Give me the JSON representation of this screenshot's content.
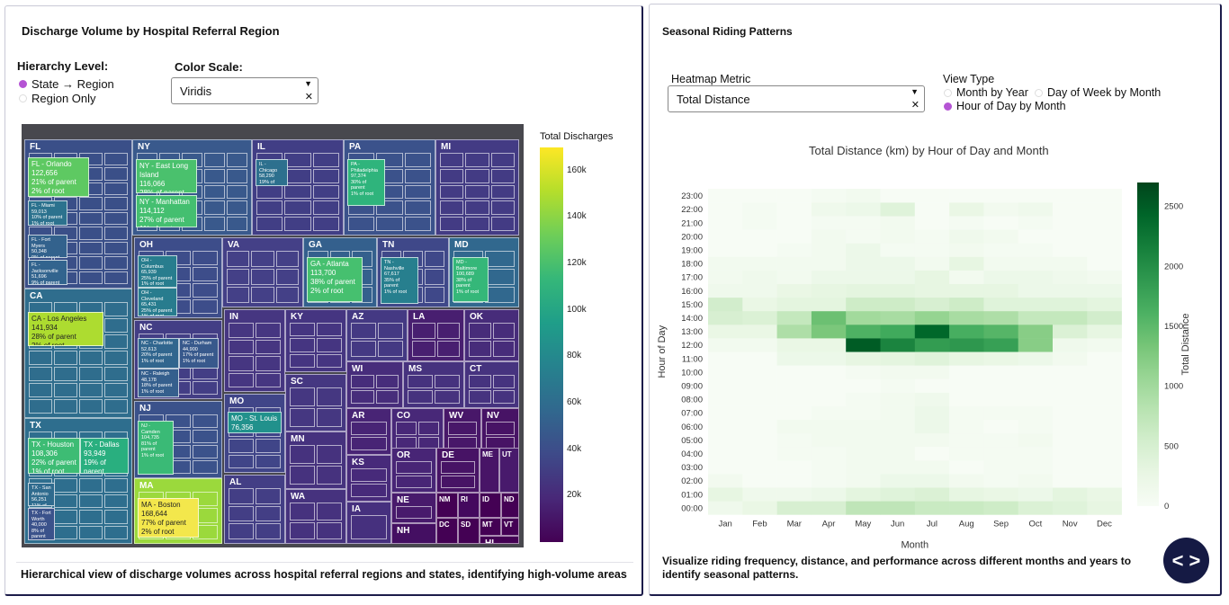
{
  "left": {
    "title": "Discharge Volume by Hospital Referral Region",
    "hierarchy_label": "Hierarchy Level:",
    "hierarchy_options": [
      {
        "label": "State → Region",
        "selected": true
      },
      {
        "label": "Region Only",
        "selected": false
      }
    ],
    "color_scale_label": "Color Scale:",
    "color_scale_value": "Viridis",
    "colorbar_title": "Total Discharges",
    "colorbar_ticks": [
      "160k",
      "140k",
      "120k",
      "100k",
      "80k",
      "60k",
      "40k",
      "20k"
    ],
    "states": [
      {
        "code": "FL",
        "color": "#3a4f88"
      },
      {
        "code": "NY",
        "color": "#39598c"
      },
      {
        "code": "IL",
        "color": "#413e85"
      },
      {
        "code": "PA",
        "color": "#3b528b"
      },
      {
        "code": "MI",
        "color": "#433b84"
      },
      {
        "code": "CA",
        "color": "#2f6d8d"
      },
      {
        "code": "OH",
        "color": "#3d4d8a"
      },
      {
        "code": "VA",
        "color": "#444087"
      },
      {
        "code": "GA",
        "color": "#34608d"
      },
      {
        "code": "TN",
        "color": "#3f4889"
      },
      {
        "code": "MD",
        "color": "#31688e"
      },
      {
        "code": "NC",
        "color": "#433e85"
      },
      {
        "code": "IN",
        "color": "#463681"
      },
      {
        "code": "KY",
        "color": "#453581"
      },
      {
        "code": "AZ",
        "color": "#443983"
      },
      {
        "code": "LA",
        "color": "#481f70"
      },
      {
        "code": "OK",
        "color": "#472c7a"
      },
      {
        "code": "WI",
        "color": "#472d7b"
      },
      {
        "code": "MS",
        "color": "#46327e"
      },
      {
        "code": "CT",
        "color": "#46337f"
      },
      {
        "code": "TX",
        "color": "#2e6e8e"
      },
      {
        "code": "MO",
        "color": "#404588"
      },
      {
        "code": "SC",
        "color": "#453781"
      },
      {
        "code": "NJ",
        "color": "#3b528b"
      },
      {
        "code": "MN",
        "color": "#46327e"
      },
      {
        "code": "AR",
        "color": "#482475"
      },
      {
        "code": "CO",
        "color": "#482878"
      },
      {
        "code": "WV",
        "color": "#481769"
      },
      {
        "code": "NV",
        "color": "#471365"
      },
      {
        "code": "KS",
        "color": "#472a7a"
      },
      {
        "code": "OR",
        "color": "#482576"
      },
      {
        "code": "DE",
        "color": "#471365"
      },
      {
        "code": "ME",
        "color": "#481467"
      },
      {
        "code": "UT",
        "color": "#481a6c"
      },
      {
        "code": "MA",
        "color": "#9bd93c"
      },
      {
        "code": "AL",
        "color": "#433e85"
      },
      {
        "code": "WA",
        "color": "#46327e"
      },
      {
        "code": "NE",
        "color": "#481a6c"
      },
      {
        "code": "IA",
        "color": "#46307e"
      },
      {
        "code": "NM",
        "color": "#440154"
      },
      {
        "code": "RI",
        "color": "#44095e"
      },
      {
        "code": "ID",
        "color": "#440154"
      },
      {
        "code": "ND",
        "color": "#440154"
      },
      {
        "code": "NH",
        "color": "#440f62"
      },
      {
        "code": "DC",
        "color": "#440154"
      },
      {
        "code": "SD",
        "color": "#440154"
      },
      {
        "code": "MT",
        "color": "#440154"
      },
      {
        "code": "VT",
        "color": "#440154"
      },
      {
        "code": "HI",
        "color": "#440154"
      }
    ],
    "region_labels": [
      {
        "name": "FL - Orlando",
        "value": "122,656",
        "p1": "21% of parent",
        "p2": "2% of root",
        "color": "#5ec962"
      },
      {
        "name": "CA - Los Angeles",
        "value": "141,934",
        "p1": "28% of parent",
        "p2": "2% of root",
        "color": "#addc30"
      },
      {
        "name": "MA - Boston",
        "value": "168,644",
        "p1": "77% of parent",
        "p2": "2% of root",
        "color": "#f3e74c"
      },
      {
        "name": "TX - Houston",
        "value": "108,306",
        "p1": "22% of parent",
        "p2": "1% of root",
        "color": "#3dbc74"
      },
      {
        "name": "TX - Dallas",
        "value": "93,949",
        "p1": "19% of parent",
        "p2": "1% of root",
        "color": "#29af7f"
      },
      {
        "name": "NY - East Long Island",
        "value": "116,066",
        "p1": "28% of parent",
        "p2": "2% of root",
        "color": "#4ac16d"
      },
      {
        "name": "NY - Manhattan",
        "value": "114,112",
        "p1": "27% of parent",
        "p2": "1% of root",
        "color": "#44bf70"
      },
      {
        "name": "GA - Atlanta",
        "value": "113,700",
        "p1": "38% of parent",
        "p2": "2% of root",
        "color": "#46c06f"
      },
      {
        "name": "MD - Baltimore",
        "value": "100,689",
        "p1": "38% of parent",
        "p2": "1% of root",
        "color": "#35b779"
      },
      {
        "name": "FL - Miami",
        "value": "59,013",
        "p1": "10% of parent",
        "p2": "1% of root",
        "color": "#2c728e"
      },
      {
        "name": "FL - Fort Myers",
        "value": "50,348",
        "p1": "9% of parent",
        "p2": "1% of root",
        "color": "#33628d"
      },
      {
        "name": "FL - Jacksonville",
        "value": "51,696",
        "p1": "9% of parent",
        "p2": "1% of root",
        "color": "#32648e"
      },
      {
        "name": "OH - Columbus",
        "value": "65,939",
        "p1": "25% of parent",
        "p2": "1% of root",
        "color": "#287d8e"
      },
      {
        "name": "OH - Cleveland",
        "value": "65,431",
        "p1": "25% of parent",
        "p2": "1% of root",
        "color": "#287c8e"
      },
      {
        "name": "PA - Philadelphia",
        "value": "97,374",
        "p1": "30% of parent",
        "p2": "1% of root",
        "color": "#2fb47c"
      },
      {
        "name": "TN - Nashville",
        "value": "67,617",
        "p1": "35% of parent",
        "p2": "1% of root",
        "color": "#277f8e"
      },
      {
        "name": "NC - Charlotte",
        "value": "52,613",
        "p1": "20% of parent",
        "p2": "1% of root",
        "color": "#31668e"
      },
      {
        "name": "NC - Raleigh",
        "value": "48,178",
        "p1": "18% of parent",
        "p2": "1% of root",
        "color": "#355f8d"
      },
      {
        "name": "NC - Durham",
        "value": "44,900",
        "p1": "17% of parent",
        "p2": "1% of root",
        "color": "#38598c"
      },
      {
        "name": "NJ - Camden",
        "value": "104,735",
        "p1": "81% of parent",
        "p2": "1% of root",
        "color": "#3aba76"
      },
      {
        "name": "MO - St. Louis",
        "value": "76,356",
        "p1": "46% of parent",
        "p2": "1% of root",
        "color": "#21918c"
      },
      {
        "name": "IL - Chicago",
        "value": "58,290",
        "p1": "19% of parent",
        "p2": "1% of root",
        "color": "#2d708e"
      },
      {
        "name": "TX - San Antonio",
        "value": "56,251",
        "p1": "11% of parent",
        "p2": "1% of root",
        "color": "#2f6b8e"
      },
      {
        "name": "TX - Fort Worth",
        "value": "40,000",
        "p1": "8% of parent",
        "p2": "1% of root",
        "color": "#3b528b"
      }
    ]
  },
  "right": {
    "title": "Seasonal Riding Patterns",
    "metric_label": "Heatmap Metric",
    "metric_value": "Total Distance",
    "view_label": "View Type",
    "view_options": [
      {
        "label": "Month by Year",
        "selected": false
      },
      {
        "label": "Day of Week by Month",
        "selected": false
      },
      {
        "label": "Hour of Day by Month",
        "selected": true
      }
    ],
    "footer": "Visualize riding frequency, distance, and performance across different months and years to identify seasonal patterns."
  },
  "chart_data": [
    {
      "type": "treemap",
      "title": "Discharge Volume by Hospital Referral Region",
      "colorbar_title": "Total Discharges",
      "colorscale": "Viridis",
      "color_range": [
        0,
        170000
      ]
    },
    {
      "type": "heatmap",
      "title": "Total Distance (km) by Hour of Day and Month",
      "xlabel": "Month",
      "ylabel": "Hour of Day",
      "colorbar_title": "Total Distance",
      "months": [
        "Jan",
        "Feb",
        "Mar",
        "Apr",
        "May",
        "Jun",
        "Jul",
        "Aug",
        "Sep",
        "Oct",
        "Nov",
        "Dec"
      ],
      "hours": [
        "0:00",
        "1:00",
        "2:00",
        "3:00",
        "4:00",
        "5:00",
        "6:00",
        "7:00",
        "8:00",
        "9:00",
        "10:00",
        "11:00",
        "12:00",
        "13:00",
        "14:00",
        "15:00",
        "16:00",
        "17:00",
        "18:00",
        "19:00",
        "20:00",
        "21:00",
        "22:00",
        "23:00"
      ],
      "zmin": 0,
      "zmax": 2700,
      "colorbar_ticks": [
        0,
        500,
        1000,
        1500,
        2000,
        2500
      ],
      "values": [
        [
          150,
          250,
          500,
          500,
          750,
          750,
          650,
          650,
          600,
          450,
          400,
          300
        ],
        [
          300,
          150,
          150,
          200,
          350,
          400,
          450,
          300,
          250,
          200,
          350,
          250
        ],
        [
          100,
          0,
          0,
          50,
          100,
          200,
          200,
          100,
          50,
          100,
          0,
          0
        ],
        [
          0,
          0,
          0,
          50,
          100,
          100,
          100,
          0,
          50,
          50,
          0,
          0
        ],
        [
          0,
          0,
          50,
          50,
          100,
          100,
          0,
          50,
          50,
          50,
          0,
          0
        ],
        [
          0,
          0,
          50,
          100,
          100,
          100,
          100,
          50,
          50,
          100,
          0,
          0
        ],
        [
          0,
          0,
          100,
          100,
          100,
          100,
          200,
          50,
          0,
          50,
          0,
          0
        ],
        [
          0,
          0,
          0,
          50,
          50,
          100,
          200,
          50,
          50,
          50,
          0,
          0
        ],
        [
          0,
          0,
          0,
          0,
          50,
          100,
          150,
          0,
          0,
          0,
          0,
          0
        ],
        [
          0,
          0,
          0,
          0,
          0,
          50,
          0,
          0,
          0,
          0,
          0,
          0
        ],
        [
          0,
          0,
          0,
          0,
          50,
          100,
          100,
          0,
          0,
          0,
          0,
          0
        ],
        [
          0,
          0,
          200,
          200,
          300,
          350,
          400,
          300,
          250,
          200,
          100,
          0
        ],
        [
          100,
          100,
          250,
          250,
          2500,
          2100,
          1850,
          1900,
          1800,
          1200,
          150,
          100
        ],
        [
          250,
          250,
          900,
          1300,
          1600,
          1700,
          2400,
          1650,
          1550,
          1200,
          450,
          300
        ],
        [
          500,
          450,
          700,
          1400,
          1000,
          950,
          1100,
          950,
          900,
          700,
          700,
          550
        ],
        [
          550,
          250,
          350,
          350,
          600,
          600,
          500,
          600,
          400,
          400,
          400,
          350
        ],
        [
          150,
          150,
          250,
          300,
          350,
          350,
          300,
          300,
          300,
          200,
          200,
          200
        ],
        [
          100,
          150,
          100,
          200,
          200,
          200,
          300,
          100,
          200,
          200,
          150,
          100
        ],
        [
          100,
          100,
          100,
          100,
          200,
          200,
          100,
          300,
          100,
          100,
          100,
          0
        ],
        [
          0,
          0,
          50,
          100,
          200,
          50,
          50,
          100,
          50,
          50,
          0,
          0
        ],
        [
          0,
          0,
          0,
          100,
          50,
          100,
          50,
          150,
          100,
          0,
          0,
          0
        ],
        [
          0,
          50,
          0,
          50,
          50,
          100,
          0,
          50,
          0,
          50,
          0,
          0
        ],
        [
          0,
          50,
          0,
          150,
          200,
          400,
          0,
          250,
          100,
          150,
          0,
          0
        ],
        [
          0,
          0,
          0,
          50,
          100,
          0,
          0,
          0,
          0,
          0,
          0,
          0
        ]
      ]
    }
  ]
}
